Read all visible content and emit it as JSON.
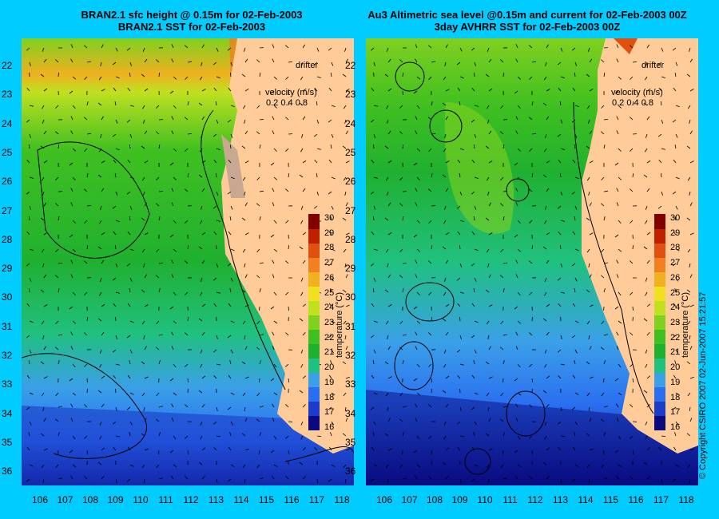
{
  "left_panel": {
    "title_line1": "BRAN2.1 sfc height @ 0.15m for 02-Feb-2003",
    "title_line2": "BRAN2.1 SST for 02-Feb-2003"
  },
  "right_panel": {
    "title_line1": "Au3 Altimetric sea level  @0.15m and current for 02-Feb-2003 00Z",
    "title_line2": "3day AVHRR SST for 02-Feb-2003 00Z"
  },
  "legend": {
    "drifter_label": "drifter",
    "velocity_label": "velocity (m/s)",
    "velocity_scale": [
      "0.2",
      "0.4",
      "0.8"
    ],
    "colorbar_title": "temperature (°C)",
    "colorbar_ticks": [
      "16",
      "17",
      "18",
      "19",
      "20",
      "21",
      "22",
      "23",
      "24",
      "25",
      "26",
      "27",
      "28",
      "29",
      "30"
    ]
  },
  "y_axis_labels": [
    "22",
    "23",
    "24",
    "25",
    "26",
    "27",
    "28",
    "29",
    "30",
    "31",
    "32",
    "33",
    "34",
    "35",
    "36"
  ],
  "x_axis_labels": [
    "106",
    "107",
    "108",
    "109",
    "110",
    "111",
    "112",
    "113",
    "114",
    "115",
    "116",
    "117",
    "118"
  ],
  "copyright": "© Copyright CSIRO 2007    02-Jun-2007 15:21:57",
  "colors": {
    "background": "#00ccff",
    "land": "#ffcc99",
    "drifter": "#ff33ff",
    "colormap": [
      "#0a0a80",
      "#1a3cc8",
      "#2a6ef0",
      "#3aa0e8",
      "#20c080",
      "#20b030",
      "#40c020",
      "#80d020",
      "#c0e020",
      "#f0e020",
      "#f0b020",
      "#f08020",
      "#e05010",
      "#c02000",
      "#800000"
    ]
  }
}
